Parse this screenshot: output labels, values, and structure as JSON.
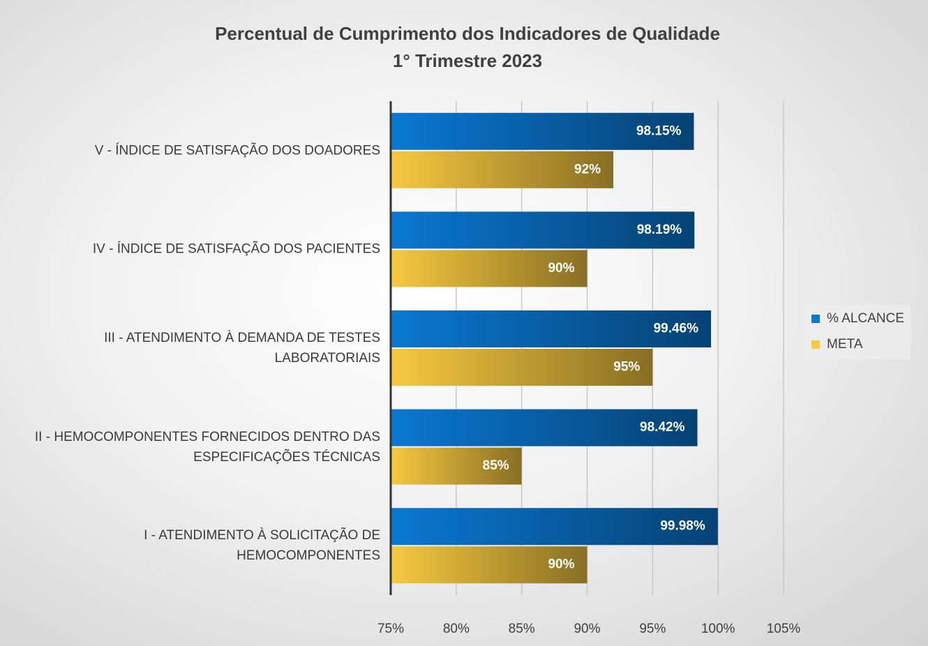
{
  "chart_data": {
    "type": "barh",
    "title": "Percentual de Cumprimento dos Indicadores de Qualidade",
    "subtitle": "1° Trimestre 2023",
    "categories": [
      "V - ÍNDICE DE SATISFAÇÃO DOS DOADORES",
      "IV - ÍNDICE DE SATISFAÇÃO DOS PACIENTES",
      "III - ATENDIMENTO À DEMANDA DE TESTES LABORATORIAIS",
      "II - HEMOCOMPONENTES FORNECIDOS DENTRO DAS ESPECIFICAÇÕES TÉCNICAS",
      "I - ATENDIMENTO À SOLICITAÇÃO DE HEMOCOMPONENTES"
    ],
    "series": [
      {
        "name": "% ALCANCE",
        "color": "#0a78d2",
        "values": [
          98.15,
          98.19,
          99.46,
          98.42,
          99.98
        ],
        "value_labels": [
          "98.15%",
          "98.19%",
          "99.46%",
          "98.42%",
          "99.98%"
        ]
      },
      {
        "name": "META",
        "color": "#f7c940",
        "values": [
          92,
          90,
          95,
          85,
          90
        ],
        "value_labels": [
          "92%",
          "90%",
          "95%",
          "85%",
          "90%"
        ]
      }
    ],
    "xlim": [
      75,
      105
    ],
    "xticks": [
      {
        "value": 75,
        "label": "75%"
      },
      {
        "value": 80,
        "label": "80%"
      },
      {
        "value": 85,
        "label": "85%"
      },
      {
        "value": 90,
        "label": "90%"
      },
      {
        "value": 95,
        "label": "95%"
      },
      {
        "value": 100,
        "label": "100%"
      },
      {
        "value": 105,
        "label": "105%"
      }
    ],
    "grid": true,
    "legend": "right"
  }
}
